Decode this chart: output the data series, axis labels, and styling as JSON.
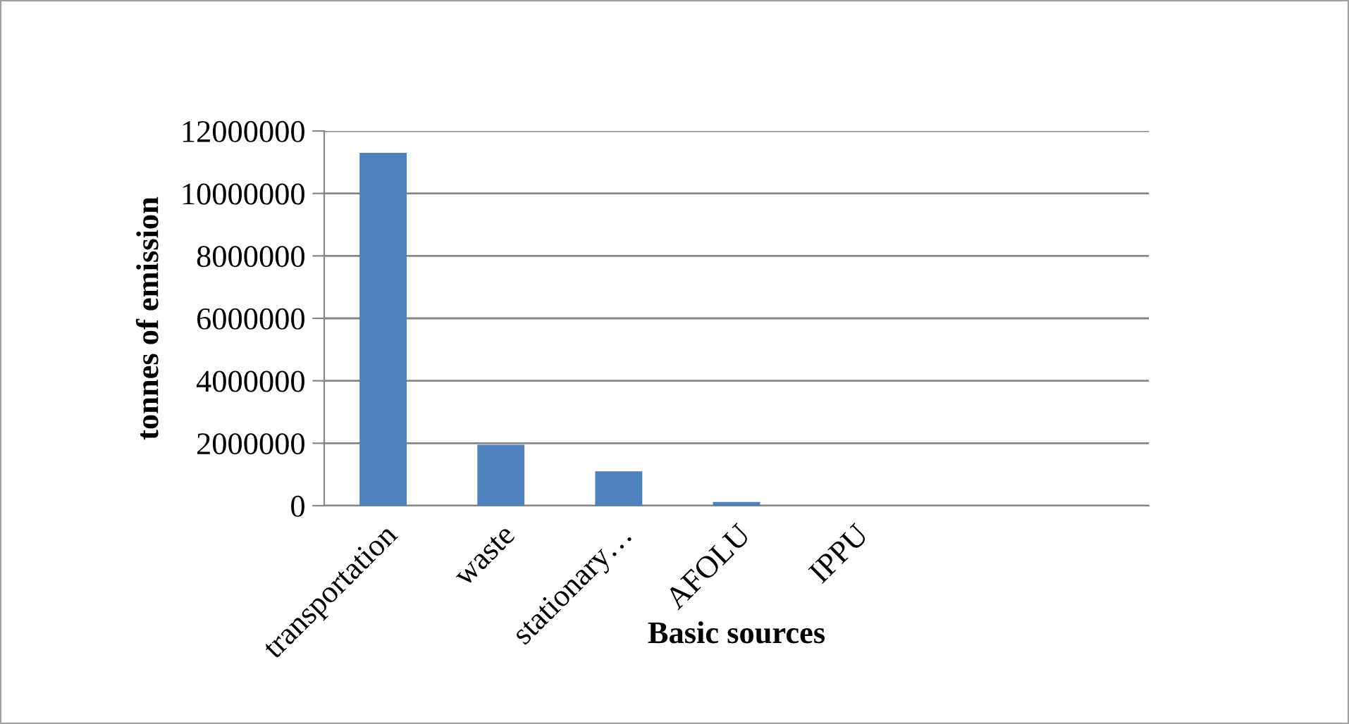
{
  "chart_data": {
    "type": "bar",
    "xlabel": "Basic sources",
    "ylabel": "tonnes of emission",
    "categories": [
      "transportation",
      "waste",
      "stationary…",
      "AFOLU",
      "IPPU",
      null,
      null
    ],
    "values": [
      11300000,
      1950000,
      1100000,
      120000,
      0,
      null,
      null
    ],
    "color": "#4f81bd",
    "ylim": [
      0,
      12000000
    ],
    "yticks": [
      0,
      2000000,
      4000000,
      6000000,
      8000000,
      10000000,
      12000000
    ],
    "grid": "y",
    "legend": false
  }
}
